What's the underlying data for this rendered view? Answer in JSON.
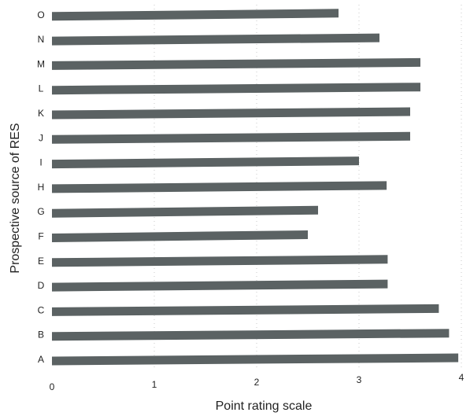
{
  "chart_data": {
    "type": "bar",
    "orientation": "horizontal",
    "title": "",
    "xlabel": "Point rating scale",
    "ylabel": "Prospective source of RES",
    "categories": [
      "A",
      "B",
      "C",
      "D",
      "E",
      "F",
      "G",
      "H",
      "I",
      "J",
      "K",
      "L",
      "M",
      "N",
      "O"
    ],
    "values": [
      3.97,
      3.88,
      3.78,
      3.28,
      3.28,
      2.5,
      2.6,
      3.27,
      3.0,
      3.5,
      3.5,
      3.6,
      3.6,
      3.2,
      2.8
    ],
    "xlim": [
      0,
      4
    ],
    "xticks": [
      0,
      1,
      2,
      3,
      4
    ],
    "grid": "vertical, faint dotted",
    "legend": "none",
    "colors": {
      "bar": "#5b6263",
      "text": "#222222",
      "grid": "#c8c8c8"
    }
  }
}
